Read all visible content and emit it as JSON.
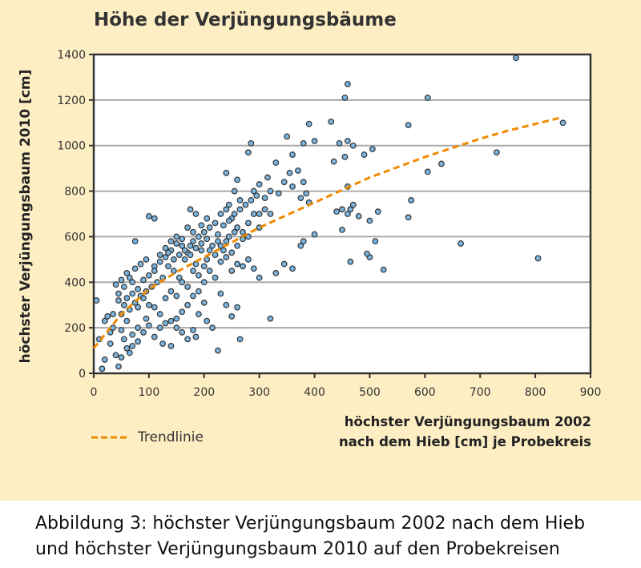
{
  "chart_data": {
    "type": "scatter",
    "title": "Höhe der Verjüngungsbäume",
    "ylabel": "höchster Verjüngungsbaum 2010 [cm]",
    "xlabel": [
      "höchster Verjüngungsbaum 2002",
      "nach dem Hieb [cm] je Probekreis"
    ],
    "xlim": [
      0,
      900
    ],
    "ylim": [
      0,
      1400
    ],
    "xticks": [
      0,
      100,
      200,
      300,
      400,
      500,
      600,
      700,
      800,
      900
    ],
    "yticks": [
      0,
      200,
      400,
      600,
      800,
      1000,
      1200,
      1400
    ],
    "grid": "horizontal",
    "legend": {
      "label": "Trendlinie",
      "placement": "bottom-left"
    },
    "colors": {
      "point": "#7ab4de",
      "point_edge": "#333333",
      "trend": "#f08a00",
      "background": "#fdeec4"
    },
    "points": [
      [
        765,
        1385
      ],
      [
        605,
        1210
      ],
      [
        460,
        1270
      ],
      [
        455,
        1210
      ],
      [
        850,
        1100
      ],
      [
        570,
        1090
      ],
      [
        390,
        1095
      ],
      [
        430,
        1105
      ],
      [
        605,
        885
      ],
      [
        630,
        920
      ],
      [
        730,
        970
      ],
      [
        665,
        570
      ],
      [
        805,
        505
      ],
      [
        575,
        760
      ],
      [
        570,
        685
      ],
      [
        525,
        455
      ],
      [
        510,
        580
      ],
      [
        500,
        510
      ],
      [
        495,
        525
      ],
      [
        465,
        490
      ],
      [
        450,
        630
      ],
      [
        480,
        690
      ],
      [
        470,
        740
      ],
      [
        500,
        670
      ],
      [
        465,
        720
      ],
      [
        460,
        1020
      ],
      [
        445,
        1010
      ],
      [
        470,
        1000
      ],
      [
        505,
        985
      ],
      [
        515,
        710
      ],
      [
        490,
        960
      ],
      [
        455,
        950
      ],
      [
        440,
        710
      ],
      [
        450,
        720
      ],
      [
        460,
        700
      ],
      [
        435,
        930
      ],
      [
        460,
        820
      ],
      [
        380,
        1010
      ],
      [
        400,
        1020
      ],
      [
        350,
        1040
      ],
      [
        360,
        960
      ],
      [
        370,
        890
      ],
      [
        355,
        880
      ],
      [
        330,
        925
      ],
      [
        315,
        860
      ],
      [
        300,
        830
      ],
      [
        290,
        800
      ],
      [
        285,
        1010
      ],
      [
        280,
        970
      ],
      [
        260,
        850
      ],
      [
        240,
        880
      ],
      [
        255,
        800
      ],
      [
        265,
        760
      ],
      [
        245,
        740
      ],
      [
        300,
        700
      ],
      [
        310,
        770
      ],
      [
        320,
        800
      ],
      [
        335,
        790
      ],
      [
        345,
        840
      ],
      [
        360,
        820
      ],
      [
        375,
        770
      ],
      [
        380,
        840
      ],
      [
        390,
        750
      ],
      [
        385,
        790
      ],
      [
        400,
        610
      ],
      [
        375,
        560
      ],
      [
        380,
        580
      ],
      [
        330,
        440
      ],
      [
        345,
        480
      ],
      [
        360,
        460
      ],
      [
        320,
        240
      ],
      [
        265,
        150
      ],
      [
        225,
        100
      ],
      [
        260,
        290
      ],
      [
        250,
        250
      ],
      [
        240,
        300
      ],
      [
        230,
        350
      ],
      [
        215,
        200
      ],
      [
        205,
        230
      ],
      [
        190,
        260
      ],
      [
        200,
        310
      ],
      [
        180,
        190
      ],
      [
        185,
        160
      ],
      [
        170,
        150
      ],
      [
        160,
        180
      ],
      [
        150,
        200
      ],
      [
        140,
        120
      ],
      [
        125,
        130
      ],
      [
        110,
        160
      ],
      [
        95,
        240
      ],
      [
        80,
        200
      ],
      [
        70,
        120
      ],
      [
        65,
        90
      ],
      [
        60,
        110
      ],
      [
        55,
        150
      ],
      [
        50,
        70
      ],
      [
        45,
        30
      ],
      [
        40,
        80
      ],
      [
        30,
        130
      ],
      [
        20,
        60
      ],
      [
        15,
        20
      ],
      [
        10,
        150
      ],
      [
        5,
        320
      ],
      [
        25,
        250
      ],
      [
        35,
        200
      ],
      [
        45,
        350
      ],
      [
        55,
        380
      ],
      [
        65,
        420
      ],
      [
        75,
        460
      ],
      [
        85,
        480
      ],
      [
        95,
        500
      ],
      [
        100,
        690
      ],
      [
        110,
        680
      ],
      [
        75,
        580
      ],
      [
        110,
        470
      ],
      [
        120,
        520
      ],
      [
        130,
        550
      ],
      [
        140,
        580
      ],
      [
        150,
        600
      ],
      [
        160,
        560
      ],
      [
        170,
        530
      ],
      [
        180,
        580
      ],
      [
        190,
        600
      ],
      [
        200,
        620
      ],
      [
        210,
        640
      ],
      [
        220,
        660
      ],
      [
        230,
        700
      ],
      [
        240,
        720
      ],
      [
        250,
        680
      ],
      [
        260,
        640
      ],
      [
        270,
        620
      ],
      [
        280,
        660
      ],
      [
        290,
        700
      ],
      [
        300,
        640
      ],
      [
        310,
        720
      ],
      [
        320,
        700
      ],
      [
        215,
        560
      ],
      [
        225,
        580
      ],
      [
        235,
        540
      ],
      [
        245,
        600
      ],
      [
        255,
        620
      ],
      [
        165,
        500
      ],
      [
        175,
        520
      ],
      [
        185,
        480
      ],
      [
        195,
        540
      ],
      [
        205,
        500
      ],
      [
        135,
        470
      ],
      [
        145,
        450
      ],
      [
        155,
        420
      ],
      [
        125,
        420
      ],
      [
        115,
        400
      ],
      [
        105,
        380
      ],
      [
        95,
        360
      ],
      [
        85,
        340
      ],
      [
        75,
        310
      ],
      [
        65,
        280
      ],
      [
        55,
        300
      ],
      [
        45,
        320
      ],
      [
        40,
        390
      ],
      [
        50,
        410
      ],
      [
        60,
        440
      ],
      [
        70,
        400
      ],
      [
        80,
        370
      ],
      [
        90,
        330
      ],
      [
        100,
        300
      ],
      [
        110,
        290
      ],
      [
        120,
        260
      ],
      [
        130,
        330
      ],
      [
        140,
        360
      ],
      [
        150,
        340
      ],
      [
        160,
        400
      ],
      [
        170,
        380
      ],
      [
        180,
        450
      ],
      [
        190,
        430
      ],
      [
        200,
        470
      ],
      [
        210,
        450
      ],
      [
        220,
        420
      ],
      [
        230,
        490
      ],
      [
        240,
        510
      ],
      [
        250,
        530
      ],
      [
        260,
        560
      ],
      [
        270,
        590
      ],
      [
        280,
        600
      ],
      [
        180,
        620
      ],
      [
        170,
        640
      ],
      [
        160,
        590
      ],
      [
        150,
        570
      ],
      [
        140,
        540
      ],
      [
        130,
        510
      ],
      [
        120,
        490
      ],
      [
        110,
        450
      ],
      [
        100,
        430
      ],
      [
        90,
        410
      ],
      [
        185,
        550
      ],
      [
        195,
        570
      ],
      [
        205,
        590
      ],
      [
        175,
        560
      ],
      [
        165,
        540
      ],
      [
        155,
        520
      ],
      [
        145,
        500
      ],
      [
        135,
        530
      ],
      [
        225,
        610
      ],
      [
        235,
        650
      ],
      [
        245,
        670
      ],
      [
        255,
        700
      ],
      [
        265,
        720
      ],
      [
        275,
        740
      ],
      [
        285,
        760
      ],
      [
        295,
        780
      ],
      [
        205,
        680
      ],
      [
        195,
        650
      ],
      [
        185,
        700
      ],
      [
        175,
        720
      ],
      [
        210,
        540
      ],
      [
        220,
        520
      ],
      [
        230,
        560
      ],
      [
        240,
        580
      ],
      [
        250,
        450
      ],
      [
        260,
        480
      ],
      [
        270,
        470
      ],
      [
        280,
        500
      ],
      [
        290,
        460
      ],
      [
        300,
        420
      ],
      [
        200,
        400
      ],
      [
        190,
        360
      ],
      [
        180,
        340
      ],
      [
        170,
        300
      ],
      [
        160,
        270
      ],
      [
        150,
        240
      ],
      [
        140,
        230
      ],
      [
        130,
        220
      ],
      [
        120,
        200
      ],
      [
        30,
        180
      ],
      [
        20,
        230
      ],
      [
        35,
        260
      ],
      [
        50,
        190
      ],
      [
        60,
        230
      ],
      [
        70,
        170
      ],
      [
        80,
        140
      ],
      [
        90,
        180
      ],
      [
        100,
        210
      ],
      [
        60,
        330
      ],
      [
        70,
        350
      ],
      [
        80,
        290
      ],
      [
        50,
        260
      ]
    ],
    "trend": [
      [
        0,
        110
      ],
      [
        50,
        260
      ],
      [
        100,
        370
      ],
      [
        150,
        445
      ],
      [
        200,
        510
      ],
      [
        250,
        575
      ],
      [
        300,
        640
      ],
      [
        350,
        695
      ],
      [
        400,
        750
      ],
      [
        450,
        805
      ],
      [
        500,
        860
      ],
      [
        550,
        905
      ],
      [
        600,
        950
      ],
      [
        650,
        990
      ],
      [
        700,
        1030
      ],
      [
        750,
        1065
      ],
      [
        800,
        1095
      ],
      [
        850,
        1125
      ]
    ]
  },
  "caption": [
    "Abbildung 3: höchster Verjüngungsbaum 2002 nach dem Hieb",
    "und höchster Verjüngungsbaum 2010 auf den Probekreisen"
  ]
}
